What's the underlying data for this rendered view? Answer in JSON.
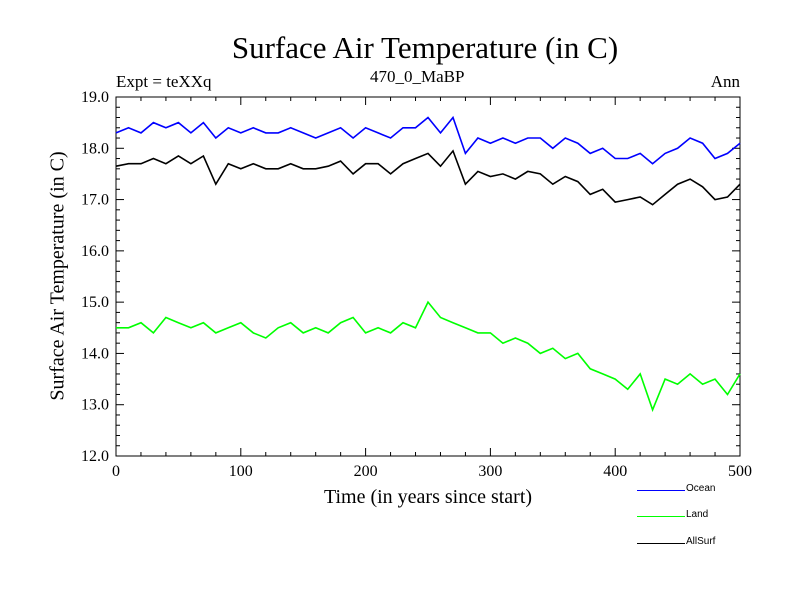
{
  "chart_data": {
    "type": "line",
    "title": "Surface Air Temperature (in C)",
    "subtitle_left": "Expt = teXXq",
    "subtitle_center": "470_0_MaBP",
    "subtitle_right": "Ann",
    "xlabel": "Time (in years since start)",
    "ylabel": "Surface Air Temperature (in C)",
    "xlim": [
      0,
      500
    ],
    "ylim": [
      12.0,
      19.0
    ],
    "xticks": [
      "0",
      "100",
      "200",
      "300",
      "400",
      "500"
    ],
    "yticks": [
      "12.0",
      "13.0",
      "14.0",
      "15.0",
      "16.0",
      "17.0",
      "18.0",
      "19.0"
    ],
    "grid": false,
    "legend_position": "bottom-right",
    "x": [
      0,
      10,
      20,
      30,
      40,
      50,
      60,
      70,
      80,
      90,
      100,
      110,
      120,
      130,
      140,
      150,
      160,
      170,
      180,
      190,
      200,
      210,
      220,
      230,
      240,
      250,
      260,
      270,
      280,
      290,
      300,
      310,
      320,
      330,
      340,
      350,
      360,
      370,
      380,
      390,
      400,
      410,
      420,
      430,
      440,
      450,
      460,
      470,
      480,
      490,
      500
    ],
    "series": [
      {
        "name": "Ocean",
        "color": "#0000ff",
        "values": [
          18.3,
          18.4,
          18.3,
          18.5,
          18.4,
          18.5,
          18.3,
          18.5,
          18.2,
          18.4,
          18.3,
          18.4,
          18.3,
          18.3,
          18.4,
          18.3,
          18.2,
          18.3,
          18.4,
          18.2,
          18.4,
          18.3,
          18.2,
          18.4,
          18.4,
          18.6,
          18.3,
          18.6,
          17.9,
          18.2,
          18.1,
          18.2,
          18.1,
          18.2,
          18.2,
          18.0,
          18.2,
          18.1,
          17.9,
          18.0,
          17.8,
          17.8,
          17.9,
          17.7,
          17.9,
          18.0,
          18.2,
          18.1,
          17.8,
          17.9,
          18.1
        ]
      },
      {
        "name": "Land",
        "color": "#00ff00",
        "values": [
          14.5,
          14.5,
          14.6,
          14.4,
          14.7,
          14.6,
          14.5,
          14.6,
          14.4,
          14.5,
          14.6,
          14.4,
          14.3,
          14.5,
          14.6,
          14.4,
          14.5,
          14.4,
          14.6,
          14.7,
          14.4,
          14.5,
          14.4,
          14.6,
          14.5,
          15.0,
          14.7,
          14.6,
          14.5,
          14.4,
          14.4,
          14.2,
          14.3,
          14.2,
          14.0,
          14.1,
          13.9,
          14.0,
          13.7,
          13.6,
          13.5,
          13.3,
          13.6,
          12.9,
          13.5,
          13.4,
          13.6,
          13.4,
          13.5,
          13.2,
          13.6
        ]
      },
      {
        "name": "AllSurf",
        "color": "#000000",
        "values": [
          17.65,
          17.7,
          17.7,
          17.8,
          17.7,
          17.85,
          17.7,
          17.85,
          17.3,
          17.7,
          17.6,
          17.7,
          17.6,
          17.6,
          17.7,
          17.6,
          17.6,
          17.65,
          17.75,
          17.5,
          17.7,
          17.7,
          17.5,
          17.7,
          17.8,
          17.9,
          17.65,
          17.95,
          17.3,
          17.55,
          17.45,
          17.5,
          17.4,
          17.55,
          17.5,
          17.3,
          17.45,
          17.35,
          17.1,
          17.2,
          16.95,
          17.0,
          17.05,
          16.9,
          17.1,
          17.3,
          17.4,
          17.25,
          17.0,
          17.05,
          17.3
        ]
      }
    ]
  }
}
